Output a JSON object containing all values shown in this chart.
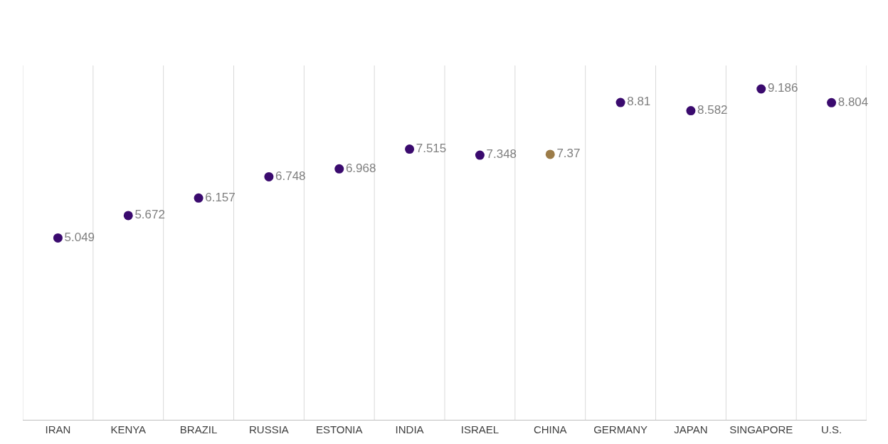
{
  "chart_data": {
    "type": "scatter",
    "categories": [
      "IRAN",
      "KENYA",
      "BRAZIL",
      "RUSSIA",
      "ESTONIA",
      "INDIA",
      "ISRAEL",
      "CHINA",
      "GERMANY",
      "JAPAN",
      "SINGAPORE",
      "U.S."
    ],
    "values": [
      5.049,
      5.672,
      6.157,
      6.748,
      6.968,
      7.515,
      7.348,
      7.37,
      8.81,
      8.582,
      9.186,
      8.804
    ],
    "colors": [
      "#3a0a6e",
      "#3a0a6e",
      "#3a0a6e",
      "#3a0a6e",
      "#3a0a6e",
      "#3a0a6e",
      "#3a0a6e",
      "#9c7c48",
      "#3a0a6e",
      "#3a0a6e",
      "#3a0a6e",
      "#3a0a6e"
    ],
    "data_labels": true,
    "marker": "circle",
    "grid": "x",
    "legend": false,
    "tick_labels": "x"
  }
}
